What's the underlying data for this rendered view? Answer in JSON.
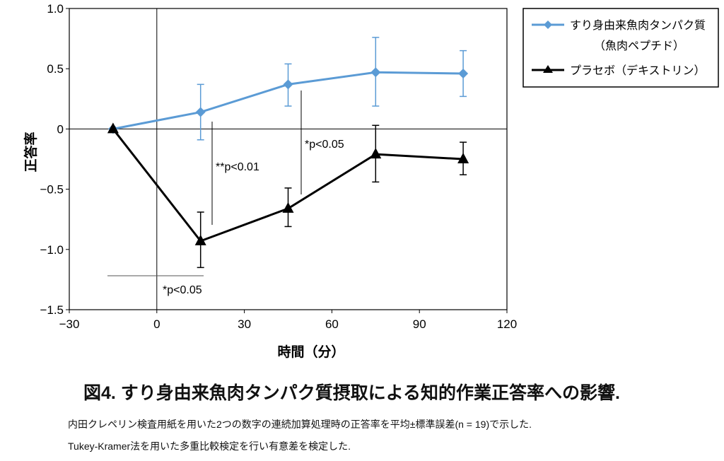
{
  "chart_data": {
    "type": "line",
    "xlabel": "時間（分）",
    "ylabel": "正答率",
    "xlim": [
      -30,
      120
    ],
    "ylim": [
      -1.5,
      1.0
    ],
    "xticks": [
      -30,
      0,
      30,
      60,
      90,
      120
    ],
    "xtick_labels": [
      "−30",
      "0",
      "30",
      "60",
      "90",
      "120"
    ],
    "yticks": [
      1.0,
      0.5,
      0,
      -0.5,
      -1.0,
      -1.5
    ],
    "ytick_labels": [
      "1.0",
      "0.5",
      "0",
      "−0.5",
      "−1.0",
      "−1.5"
    ],
    "x": [
      -15,
      15,
      45,
      75,
      105
    ],
    "series": [
      {
        "name": "すり身由来魚肉タンパク質",
        "name2": "（魚肉ペプチド）",
        "color": "#5b9bd5",
        "marker": "diamond",
        "values": [
          0,
          0.14,
          0.37,
          0.47,
          0.46
        ],
        "err_upper": [
          0,
          0.37,
          0.54,
          0.76,
          0.65
        ],
        "err_lower": [
          0,
          -0.09,
          0.19,
          0.19,
          0.27
        ]
      },
      {
        "name": "プラセボ（デキストリン）",
        "color": "#000000",
        "marker": "triangle",
        "values": [
          0,
          -0.93,
          -0.66,
          -0.21,
          -0.25
        ],
        "err_upper": [
          0,
          -0.69,
          -0.49,
          0.03,
          -0.11
        ],
        "err_lower": [
          0,
          -1.15,
          -0.81,
          -0.44,
          -0.38
        ]
      }
    ],
    "annotations": [
      "**p<0.01",
      "*p<0.05",
      "*p<0.05"
    ],
    "legend": "top-right"
  },
  "caption": {
    "title": "図4. すり身由来魚肉タンパク質摂取による知的作業正答率への影響.",
    "note1": "内田クレペリン検査用紙を用いた2つの数字の連続加算処理時の正答率を平均±標準誤差(n = 19)で示した.",
    "note2": "Tukey-Kramer法を用いた多重比較検定を行い有意差を検定した."
  }
}
